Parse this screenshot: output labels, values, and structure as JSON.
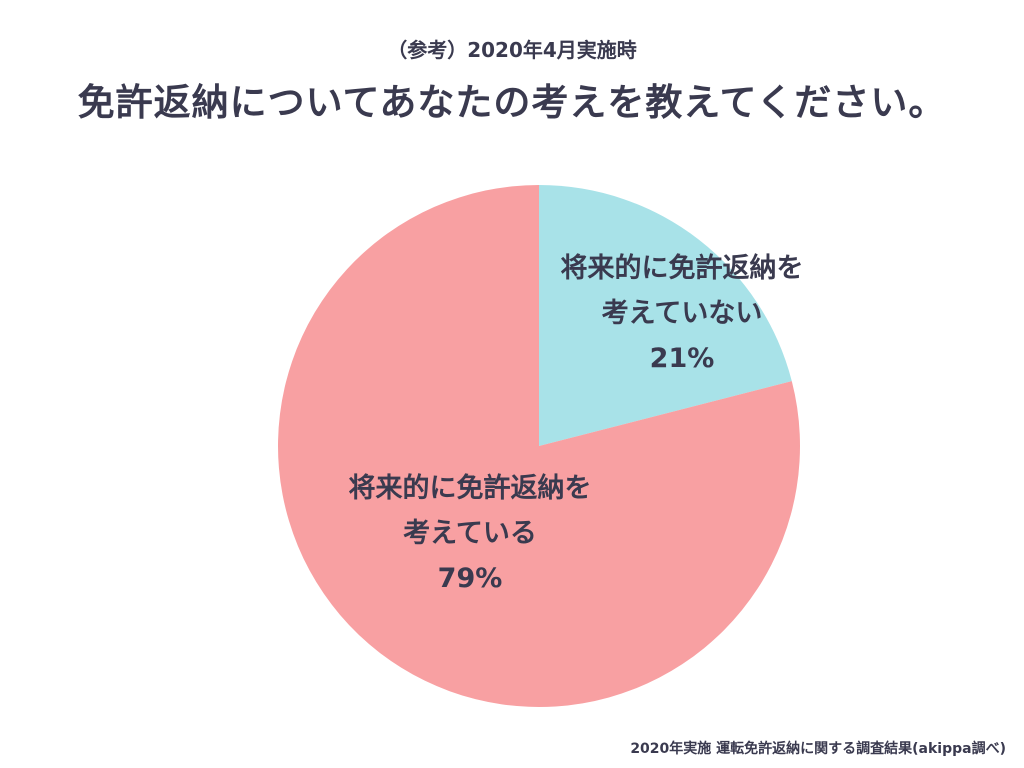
{
  "subtitle": "（参考）2020年4月実施時",
  "title": "免許返納についてあなたの考えを教えてください。",
  "source": "2020年実施 運転免許返納に関する調査結果(akippa調べ)",
  "chart_data": {
    "type": "pie",
    "title": "免許返納についてあなたの考えを教えてください。",
    "slices": [
      {
        "label": "将来的に免許返納を考えていない",
        "label_lines": [
          "将来的に免許返納を",
          "考えていない",
          "21%"
        ],
        "value": 21,
        "color": "#a8e2e8"
      },
      {
        "label": "将来的に免許返納を考えている",
        "label_lines": [
          "将来的に免許返納を",
          "考えている",
          "79%"
        ],
        "value": 79,
        "color": "#f8a0a2"
      }
    ],
    "start_angle": "12 o'clock",
    "direction": "clockwise",
    "legend": "none",
    "label_color": "#3a3a4f"
  }
}
